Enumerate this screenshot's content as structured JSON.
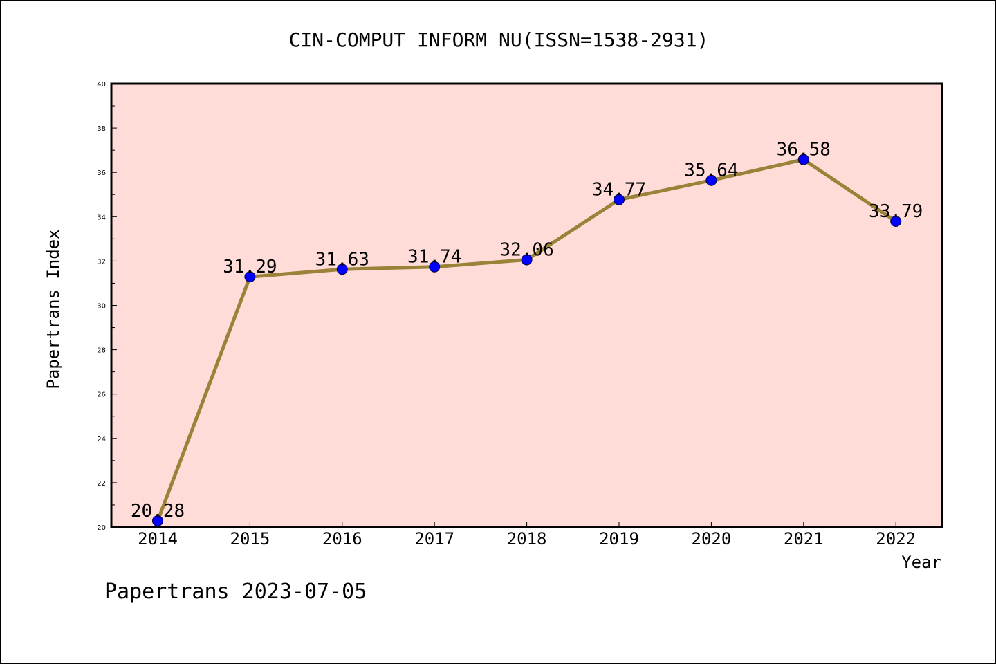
{
  "chart_data": {
    "type": "line",
    "title": "CIN-COMPUT INFORM NU(ISSN=1538-2931)",
    "xlabel": "Year",
    "ylabel": "Papertrans Index",
    "categories": [
      "2014",
      "2015",
      "2016",
      "2017",
      "2018",
      "2019",
      "2020",
      "2021",
      "2022"
    ],
    "values": [
      20.28,
      31.29,
      31.63,
      31.74,
      32.06,
      34.77,
      35.64,
      36.58,
      33.79
    ],
    "value_labels": [
      "20.28",
      "31.29",
      "31.63",
      "31.74",
      "32.06",
      "34.77",
      "35.64",
      "36.58",
      "33.79"
    ],
    "ylim": [
      20,
      40
    ],
    "yticks": [
      "20",
      "22",
      "24",
      "26",
      "28",
      "30",
      "32",
      "34",
      "36",
      "38",
      "40"
    ],
    "grid": false,
    "colors": {
      "plot_background": "#ffdcd8",
      "line": "#9a8238",
      "marker": "#0000ff",
      "axis": "#000000"
    }
  },
  "footer": {
    "text": "Papertrans 2023-07-05"
  }
}
